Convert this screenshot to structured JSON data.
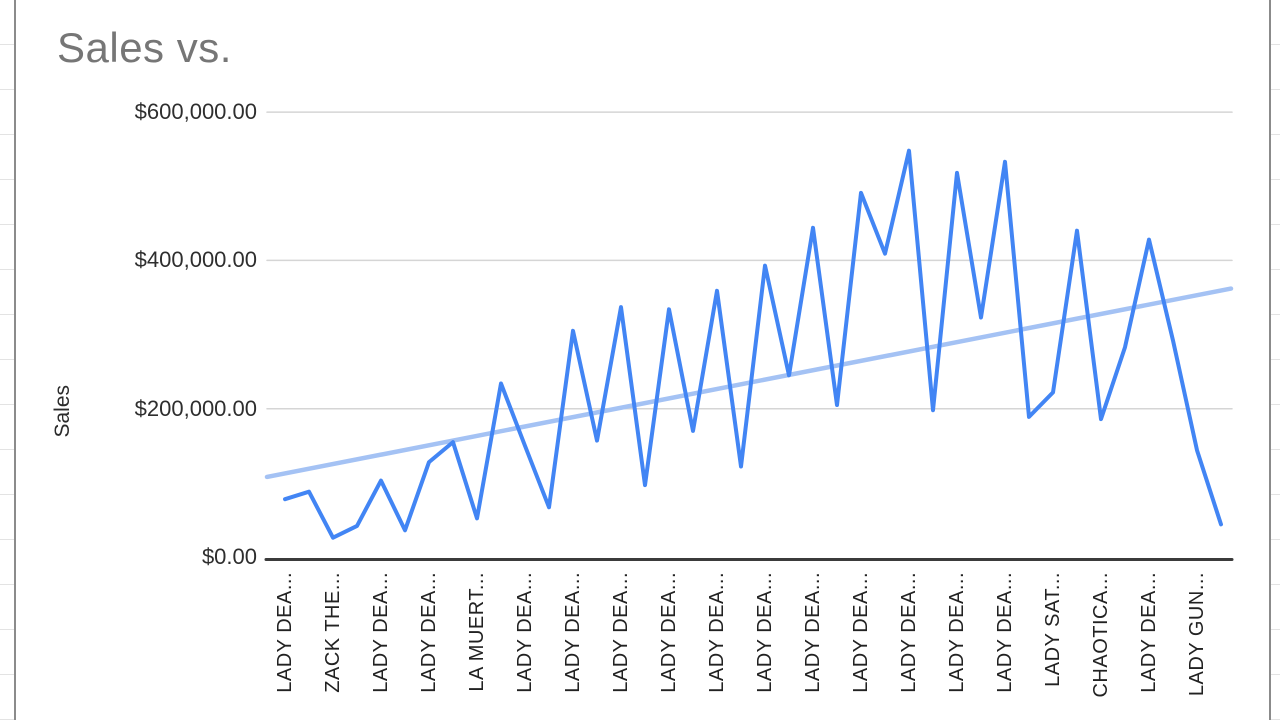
{
  "title": "Sales vs.",
  "y_axis": {
    "title": "Sales",
    "tick_labels": [
      "$600,000.00",
      "$400,000.00",
      "$200,000.00",
      "$0.00"
    ]
  },
  "chart_data": {
    "type": "line",
    "title": "Sales vs.",
    "xlabel": "",
    "ylabel": "Sales",
    "ylim": [
      0,
      600000
    ],
    "grid": true,
    "legend_position": "none",
    "y_ticks": [
      {
        "value": 600000,
        "label": "$600,000.00"
      },
      {
        "value": 400000,
        "label": "$400,000.00"
      },
      {
        "value": 200000,
        "label": "$200,000.00"
      },
      {
        "value": 0,
        "label": "$0.00"
      }
    ],
    "categories": [
      "LADY DEA...",
      "ZACK THE...",
      "LADY DEA...",
      "LADY DEA...",
      "LA MUERT...",
      "LADY DEA...",
      "LADY DEA...",
      "LADY DEA...",
      "LADY DEA...",
      "LADY DEA...",
      "LADY DEA...",
      "LADY DEA...",
      "LADY DEA...",
      "LADY DEA...",
      "LADY DEA...",
      "LADY DEA...",
      "LADY SAT...",
      "CHAOTICA...",
      "LADY DEA...",
      "LADY GUN..."
    ],
    "points_per_category": 2,
    "series": [
      {
        "name": "Sales",
        "color": "#4285f4",
        "values": [
          78000,
          88000,
          26000,
          42000,
          103000,
          36000,
          128000,
          155000,
          52000,
          234000,
          150000,
          67000,
          305000,
          157000,
          337000,
          97000,
          334000,
          170000,
          359000,
          122000,
          393000,
          245000,
          444000,
          205000,
          491000,
          409000,
          548000,
          198000,
          518000,
          323000,
          533000,
          189000,
          222000,
          440000,
          186000,
          283000,
          428000,
          292000,
          144000,
          44000
        ]
      }
    ],
    "trendline": {
      "color": "#a4c2f4",
      "start_value": 108000,
      "end_value": 362000
    },
    "colors": {
      "gridline": "#d5d5d5",
      "axis_line": "#3b3b3b",
      "title_text": "#767676",
      "axis_text": "#222222"
    }
  }
}
